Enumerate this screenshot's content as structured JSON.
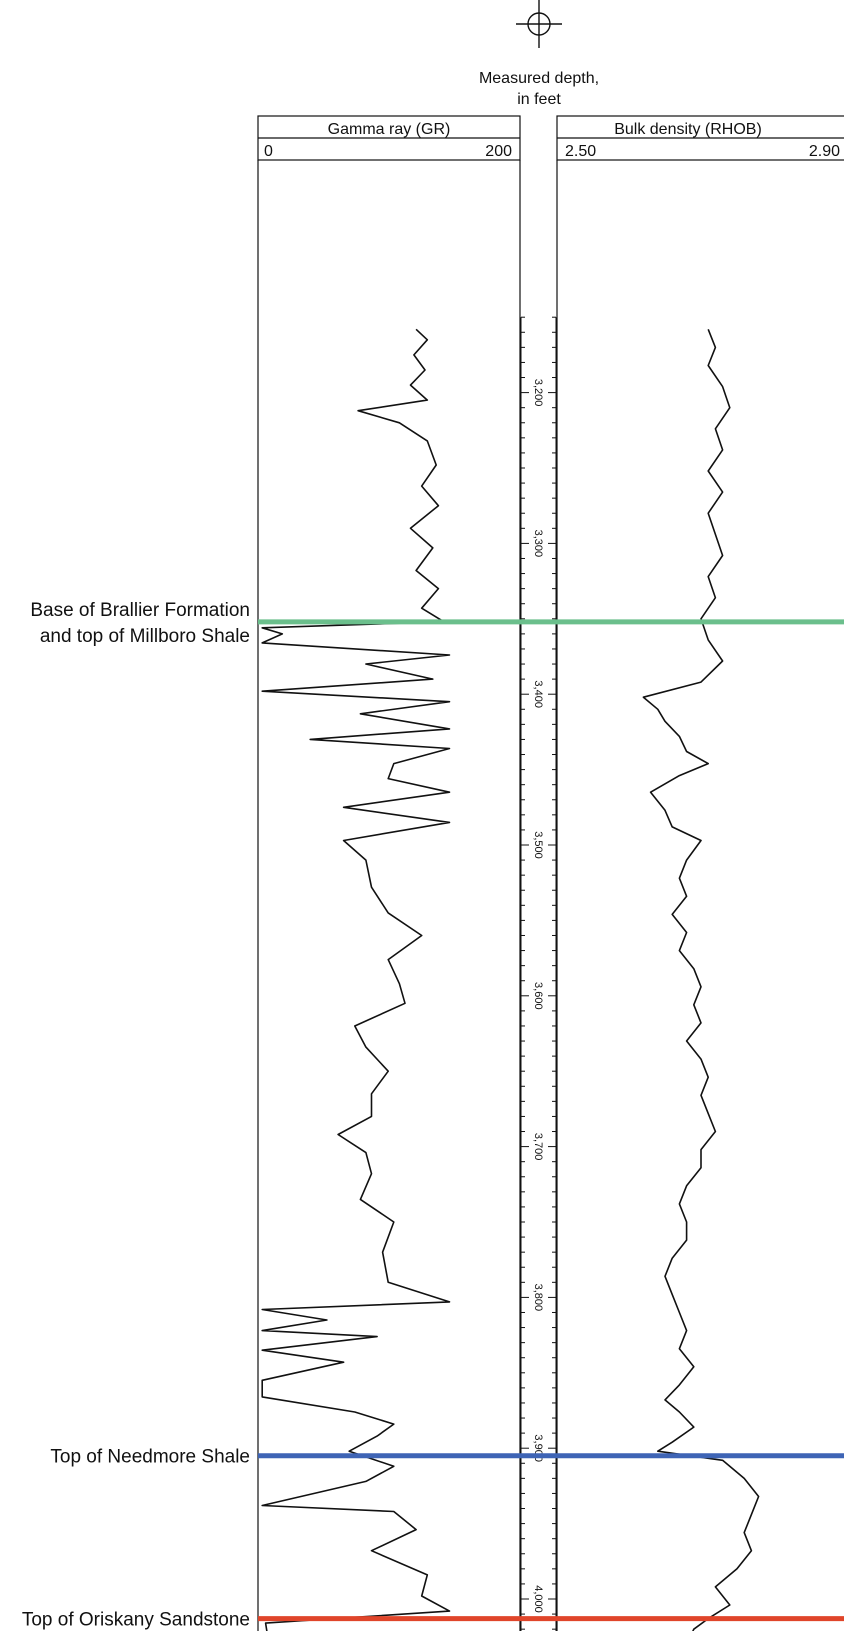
{
  "chart_data": {
    "type": "line",
    "depth_axis": {
      "label_line1": "Measured depth,",
      "label_line2": "in feet",
      "ticks": [
        "3,200",
        "3,300",
        "3,400",
        "3,500",
        "3,600",
        "3,700",
        "3,800",
        "3,900",
        "4,000"
      ],
      "range": [
        3150,
        4050
      ],
      "direction": "downward"
    },
    "tracks": [
      {
        "name": "Gamma ray (GR)",
        "scale_min_label": "0",
        "scale_max_label": "200",
        "xlim": [
          0,
          200
        ],
        "color": "#111111",
        "series": [
          [
            3158,
            140
          ],
          [
            3165,
            150
          ],
          [
            3175,
            138
          ],
          [
            3185,
            148
          ],
          [
            3195,
            135
          ],
          [
            3205,
            150
          ],
          [
            3212,
            88
          ],
          [
            3220,
            125
          ],
          [
            3232,
            150
          ],
          [
            3248,
            158
          ],
          [
            3262,
            145
          ],
          [
            3275,
            160
          ],
          [
            3290,
            135
          ],
          [
            3303,
            155
          ],
          [
            3318,
            140
          ],
          [
            3330,
            160
          ],
          [
            3343,
            145
          ],
          [
            3352,
            165
          ],
          [
            3356,
            2
          ],
          [
            3360,
            20
          ],
          [
            3366,
            2
          ],
          [
            3374,
            170
          ],
          [
            3380,
            95
          ],
          [
            3390,
            155
          ],
          [
            3398,
            2
          ],
          [
            3405,
            170
          ],
          [
            3413,
            90
          ],
          [
            3423,
            170
          ],
          [
            3430,
            45
          ],
          [
            3436,
            170
          ],
          [
            3446,
            120
          ],
          [
            3456,
            115
          ],
          [
            3465,
            170
          ],
          [
            3475,
            75
          ],
          [
            3485,
            170
          ],
          [
            3497,
            75
          ],
          [
            3510,
            95
          ],
          [
            3528,
            100
          ],
          [
            3545,
            115
          ],
          [
            3560,
            145
          ],
          [
            3576,
            115
          ],
          [
            3592,
            125
          ],
          [
            3605,
            130
          ],
          [
            3620,
            85
          ],
          [
            3634,
            95
          ],
          [
            3650,
            115
          ],
          [
            3665,
            100
          ],
          [
            3680,
            100
          ],
          [
            3692,
            70
          ],
          [
            3704,
            95
          ],
          [
            3718,
            100
          ],
          [
            3735,
            90
          ],
          [
            3750,
            120
          ],
          [
            3770,
            110
          ],
          [
            3790,
            115
          ],
          [
            3803,
            170
          ],
          [
            3808,
            2
          ],
          [
            3815,
            60
          ],
          [
            3822,
            2
          ],
          [
            3826,
            105
          ],
          [
            3835,
            2
          ],
          [
            3843,
            75
          ],
          [
            3855,
            2
          ],
          [
            3866,
            2
          ],
          [
            3876,
            85
          ],
          [
            3884,
            120
          ],
          [
            3892,
            105
          ],
          [
            3902,
            80
          ],
          [
            3912,
            120
          ],
          [
            3922,
            95
          ],
          [
            3938,
            2
          ],
          [
            3942,
            120
          ],
          [
            3954,
            140
          ],
          [
            3968,
            100
          ],
          [
            3984,
            150
          ],
          [
            3998,
            145
          ],
          [
            4008,
            170
          ],
          [
            4016,
            5
          ],
          [
            4030,
            8
          ],
          [
            4048,
            12
          ]
        ]
      },
      {
        "name": "Bulk density (RHOB)",
        "scale_min_label": "2.50",
        "scale_max_label": "2.90",
        "xlim": [
          2.5,
          2.9
        ],
        "color": "#111111",
        "series": [
          [
            3158,
            2.71
          ],
          [
            3170,
            2.72
          ],
          [
            3182,
            2.71
          ],
          [
            3196,
            2.73
          ],
          [
            3210,
            2.74
          ],
          [
            3224,
            2.72
          ],
          [
            3238,
            2.73
          ],
          [
            3252,
            2.71
          ],
          [
            3266,
            2.73
          ],
          [
            3280,
            2.71
          ],
          [
            3294,
            2.72
          ],
          [
            3308,
            2.73
          ],
          [
            3322,
            2.71
          ],
          [
            3336,
            2.72
          ],
          [
            3350,
            2.7
          ],
          [
            3364,
            2.71
          ],
          [
            3378,
            2.73
          ],
          [
            3392,
            2.7
          ],
          [
            3402,
            2.62
          ],
          [
            3410,
            2.64
          ],
          [
            3418,
            2.65
          ],
          [
            3428,
            2.67
          ],
          [
            3438,
            2.68
          ],
          [
            3446,
            2.71
          ],
          [
            3454,
            2.67
          ],
          [
            3465,
            2.63
          ],
          [
            3477,
            2.65
          ],
          [
            3488,
            2.66
          ],
          [
            3497,
            2.7
          ],
          [
            3510,
            2.68
          ],
          [
            3522,
            2.67
          ],
          [
            3534,
            2.68
          ],
          [
            3546,
            2.66
          ],
          [
            3558,
            2.68
          ],
          [
            3570,
            2.67
          ],
          [
            3582,
            2.69
          ],
          [
            3594,
            2.7
          ],
          [
            3606,
            2.69
          ],
          [
            3618,
            2.7
          ],
          [
            3630,
            2.68
          ],
          [
            3642,
            2.7
          ],
          [
            3654,
            2.71
          ],
          [
            3666,
            2.7
          ],
          [
            3678,
            2.71
          ],
          [
            3690,
            2.72
          ],
          [
            3702,
            2.7
          ],
          [
            3714,
            2.7
          ],
          [
            3726,
            2.68
          ],
          [
            3738,
            2.67
          ],
          [
            3750,
            2.68
          ],
          [
            3762,
            2.68
          ],
          [
            3774,
            2.66
          ],
          [
            3786,
            2.65
          ],
          [
            3798,
            2.66
          ],
          [
            3810,
            2.67
          ],
          [
            3822,
            2.68
          ],
          [
            3834,
            2.67
          ],
          [
            3846,
            2.69
          ],
          [
            3858,
            2.67
          ],
          [
            3868,
            2.65
          ],
          [
            3876,
            2.67
          ],
          [
            3886,
            2.69
          ],
          [
            3896,
            2.66
          ],
          [
            3902,
            2.64
          ],
          [
            3908,
            2.73
          ],
          [
            3920,
            2.76
          ],
          [
            3932,
            2.78
          ],
          [
            3944,
            2.77
          ],
          [
            3956,
            2.76
          ],
          [
            3968,
            2.77
          ],
          [
            3980,
            2.75
          ],
          [
            3992,
            2.72
          ],
          [
            4004,
            2.74
          ],
          [
            4013,
            2.71
          ],
          [
            4020,
            2.69
          ],
          [
            4030,
            2.68
          ],
          [
            4040,
            2.69
          ],
          [
            4048,
            2.7
          ]
        ]
      }
    ],
    "formation_tops": [
      {
        "label_lines": [
          "Base of Brallier Formation",
          "and top of Millboro Shale"
        ],
        "depth": 3352,
        "color": "#6bbf8c"
      },
      {
        "label_lines": [
          "Top of Needmore Shale"
        ],
        "depth": 3905,
        "color": "#3e64b5"
      },
      {
        "label_lines": [
          "Top of Oriskany Sandstone"
        ],
        "depth": 4013,
        "color": "#e0452a"
      }
    ],
    "well_symbol": "gas-well-symbol",
    "grid": false
  }
}
